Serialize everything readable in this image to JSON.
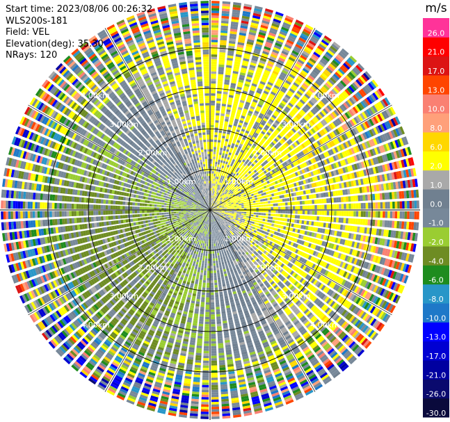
{
  "info": {
    "start_time": "Start time: 2023/08/06 00:26:32",
    "instrument": "WLS200s-181",
    "field": "Field: VEL",
    "elevation": "Elevation(deg): 35.30",
    "nrays": "NRays: 120"
  },
  "chart_data": {
    "type": "heatmap",
    "projection": "polar-ppi",
    "field": "VEL",
    "units": "m/s",
    "n_rays": 120,
    "elevation_deg": 35.3,
    "range_rings_km": [
      1.0,
      2.0,
      3.0,
      4.0
    ],
    "ring_labels": [
      "1.00km",
      "2.00km",
      "3.00km",
      "4.00km"
    ],
    "max_range_km": 5.3,
    "colorbar": {
      "label": "m/s",
      "levels": [
        -30.0,
        -26.0,
        -21.0,
        -17.0,
        -13.0,
        -10.0,
        -8.0,
        -6.0,
        -4.0,
        -2.0,
        -1.0,
        0.0,
        1.0,
        2.0,
        6.0,
        8.0,
        10.0,
        13.0,
        17.0,
        21.0,
        26.0
      ],
      "tick_labels": [
        "-30.0",
        "-26.0",
        "-21.0",
        "-17.0",
        "-13.0",
        "-10.0",
        "-8.0",
        "-6.0",
        "-4.0",
        "-2.0",
        "-1.0",
        "0.0",
        "1.0",
        "2.0",
        "6.0",
        "8.0",
        "10.0",
        "13.0",
        "17.0",
        "21.0",
        "26.0"
      ],
      "colors": [
        "#0a0a3c",
        "#0a0a6e",
        "#0000a0",
        "#0000d2",
        "#0000ff",
        "#1e78c8",
        "#2896c8",
        "#1e8c1e",
        "#6e8c23",
        "#9acd32",
        "#778899",
        "#708090",
        "#a9a9a9",
        "#ffff00",
        "#ffd700",
        "#ffa07a",
        "#fa8072",
        "#ff4500",
        "#dc1414",
        "#ff0000",
        "#ff3399"
      ]
    },
    "pattern": {
      "negative_sector_deg": [
        180,
        270
      ],
      "positive_sector_deg": [
        0,
        120
      ],
      "near_zero_noise": true
    }
  }
}
